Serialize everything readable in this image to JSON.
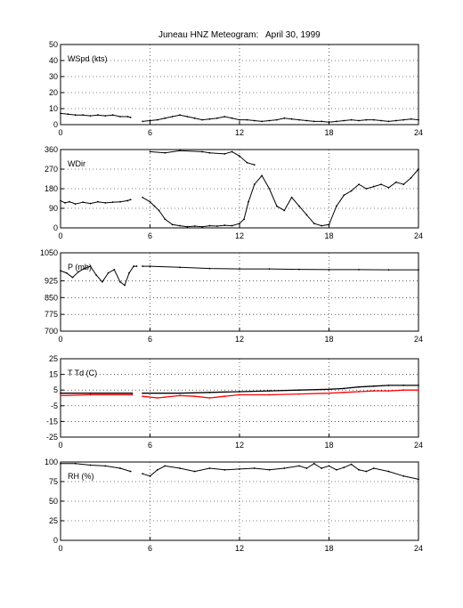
{
  "title": {
    "station": "Juneau HNZ Meteogram:",
    "date": "April 30, 1999"
  },
  "chart_data": [
    {
      "type": "scatter",
      "ylabel": "WSpd (kts)",
      "xlim": [
        0,
        24
      ],
      "ylim": [
        0,
        50
      ],
      "xticks": [
        0,
        6,
        12,
        18,
        24
      ],
      "yticks": [
        0,
        10,
        20,
        30,
        40,
        50
      ],
      "grid": true,
      "series": [
        {
          "color": "#000000",
          "segments": [
            [
              [
                0.0,
                7
              ],
              [
                0.5,
                6.5
              ],
              [
                1.0,
                6
              ],
              [
                1.5,
                6
              ],
              [
                2.0,
                5.5
              ],
              [
                2.5,
                6
              ],
              [
                3.0,
                5.5
              ],
              [
                3.5,
                6
              ],
              [
                4.0,
                5
              ],
              [
                4.5,
                5
              ],
              [
                4.7,
                4.5
              ]
            ],
            [
              [
                5.5,
                2
              ],
              [
                6.0,
                2.5
              ],
              [
                6.5,
                3
              ],
              [
                7.0,
                4
              ],
              [
                7.5,
                5
              ],
              [
                8.0,
                6
              ],
              [
                8.5,
                5
              ],
              [
                9.0,
                4
              ],
              [
                9.5,
                3
              ],
              [
                10.0,
                3.5
              ],
              [
                10.5,
                4
              ],
              [
                11.0,
                5
              ],
              [
                11.5,
                4
              ],
              [
                12.0,
                3
              ],
              [
                12.5,
                3
              ],
              [
                13.0,
                2.5
              ],
              [
                13.5,
                2
              ],
              [
                14.0,
                2.5
              ],
              [
                14.5,
                3
              ],
              [
                15.0,
                4
              ],
              [
                15.5,
                3.5
              ],
              [
                16.0,
                3
              ],
              [
                16.5,
                2.5
              ],
              [
                17.0,
                2
              ],
              [
                17.5,
                2
              ],
              [
                18.0,
                1.5
              ],
              [
                18.5,
                2
              ],
              [
                19.0,
                2.5
              ],
              [
                19.5,
                3
              ],
              [
                20.0,
                2.5
              ],
              [
                20.5,
                3
              ],
              [
                21.0,
                3
              ],
              [
                21.5,
                2.5
              ],
              [
                22.0,
                2
              ],
              [
                22.5,
                2.5
              ],
              [
                23.0,
                3
              ],
              [
                23.5,
                3.5
              ],
              [
                24.0,
                3
              ]
            ]
          ]
        }
      ]
    },
    {
      "type": "scatter",
      "ylabel": "WDir",
      "xlim": [
        0,
        24
      ],
      "ylim": [
        0,
        360
      ],
      "xticks": [
        0,
        6,
        12,
        18,
        24
      ],
      "yticks": [
        0,
        90,
        180,
        270,
        360
      ],
      "grid": true,
      "series": [
        {
          "color": "#000000",
          "segments": [
            [
              [
                0.0,
                125
              ],
              [
                0.3,
                115
              ],
              [
                0.6,
                120
              ],
              [
                1.0,
                110
              ],
              [
                1.5,
                118
              ],
              [
                2.0,
                112
              ],
              [
                2.5,
                120
              ],
              [
                3.0,
                115
              ],
              [
                3.5,
                118
              ],
              [
                4.0,
                120
              ],
              [
                4.5,
                125
              ],
              [
                4.7,
                130
              ]
            ],
            [
              [
                5.5,
                140
              ],
              [
                6.0,
                120
              ],
              [
                6.3,
                100
              ],
              [
                6.6,
                80
              ],
              [
                7.0,
                40
              ],
              [
                7.5,
                15
              ],
              [
                8.0,
                10
              ],
              [
                8.5,
                5
              ],
              [
                9.0,
                8
              ],
              [
                9.5,
                5
              ],
              [
                10.0,
                10
              ],
              [
                10.5,
                8
              ],
              [
                11.0,
                12
              ],
              [
                11.5,
                10
              ],
              [
                12.0,
                20
              ],
              [
                12.3,
                40
              ],
              [
                12.6,
                120
              ],
              [
                13.0,
                200
              ],
              [
                13.5,
                240
              ],
              [
                14.0,
                180
              ],
              [
                14.5,
                100
              ],
              [
                15.0,
                80
              ],
              [
                15.5,
                140
              ],
              [
                16.0,
                100
              ],
              [
                16.5,
                60
              ],
              [
                17.0,
                20
              ],
              [
                17.5,
                10
              ],
              [
                18.0,
                15
              ],
              [
                18.5,
                100
              ],
              [
                19.0,
                150
              ],
              [
                19.5,
                170
              ],
              [
                20.0,
                200
              ],
              [
                20.5,
                180
              ],
              [
                21.0,
                190
              ],
              [
                21.5,
                200
              ],
              [
                22.0,
                185
              ],
              [
                22.5,
                210
              ],
              [
                23.0,
                200
              ],
              [
                23.5,
                230
              ],
              [
                24.0,
                270
              ]
            ],
            [
              [
                6.0,
                350
              ],
              [
                7.0,
                345
              ],
              [
                8.0,
                355
              ],
              [
                9.5,
                350
              ],
              [
                10.0,
                345
              ],
              [
                11.0,
                340
              ],
              [
                11.5,
                350
              ],
              [
                12.0,
                330
              ],
              [
                12.5,
                300
              ],
              [
                13.0,
                290
              ]
            ]
          ]
        }
      ]
    },
    {
      "type": "scatter",
      "ylabel": "P (mb)",
      "xlim": [
        0,
        24
      ],
      "ylim": [
        700,
        1050
      ],
      "xticks": [
        0,
        6,
        12,
        18,
        24
      ],
      "yticks": [
        700,
        775,
        850,
        925,
        1050
      ],
      "grid": true,
      "series": [
        {
          "color": "#000000",
          "segments": [
            [
              [
                0.0,
                970
              ],
              [
                0.4,
                960
              ],
              [
                0.8,
                940
              ],
              [
                1.2,
                965
              ],
              [
                1.6,
                980
              ],
              [
                2.0,
                990
              ],
              [
                2.4,
                950
              ],
              [
                2.8,
                920
              ],
              [
                3.2,
                960
              ],
              [
                3.6,
                975
              ],
              [
                4.0,
                920
              ],
              [
                4.3,
                905
              ],
              [
                4.6,
                960
              ],
              [
                4.9,
                990
              ],
              [
                5.1,
                990
              ]
            ],
            [
              [
                5.5,
                990
              ],
              [
                6.0,
                990
              ],
              [
                8.0,
                985
              ],
              [
                10.0,
                980
              ],
              [
                12.0,
                978
              ],
              [
                14.0,
                978
              ],
              [
                16.0,
                976
              ],
              [
                18.0,
                975
              ],
              [
                20.0,
                975
              ],
              [
                22.0,
                974
              ],
              [
                24.0,
                974
              ]
            ]
          ]
        }
      ]
    },
    {
      "type": "line",
      "ylabel": "T Td (C)",
      "xlim": [
        0,
        24
      ],
      "ylim": [
        -25,
        25
      ],
      "xticks": [
        0,
        6,
        12,
        18,
        24
      ],
      "yticks": [
        -25,
        -15,
        -5,
        5,
        15,
        25
      ],
      "grid": true,
      "series": [
        {
          "color": "#000000",
          "segments": [
            [
              [
                0.0,
                3
              ],
              [
                2.0,
                3
              ],
              [
                4.8,
                3
              ]
            ],
            [
              [
                5.5,
                3
              ],
              [
                8.0,
                3
              ],
              [
                10.0,
                3.5
              ],
              [
                12.0,
                4
              ],
              [
                14.0,
                4.5
              ],
              [
                16.0,
                5
              ],
              [
                18.0,
                5.5
              ],
              [
                19.0,
                6
              ],
              [
                20.0,
                7
              ],
              [
                21.0,
                7.5
              ],
              [
                22.0,
                8
              ],
              [
                23.0,
                8
              ],
              [
                24.0,
                8
              ]
            ]
          ]
        },
        {
          "color": "#ff0000",
          "segments": [
            [
              [
                0.0,
                1.5
              ],
              [
                2.0,
                2
              ],
              [
                4.8,
                2
              ]
            ],
            [
              [
                5.5,
                1
              ],
              [
                6.5,
                0
              ],
              [
                7.0,
                0.5
              ],
              [
                8.0,
                1.5
              ],
              [
                9.0,
                1
              ],
              [
                10.0,
                0
              ],
              [
                11.0,
                1
              ],
              [
                12.0,
                2
              ],
              [
                14.0,
                2
              ],
              [
                16.0,
                2.5
              ],
              [
                18.0,
                3
              ],
              [
                19.0,
                3.5
              ],
              [
                20.0,
                4
              ],
              [
                21.0,
                4.5
              ],
              [
                22.0,
                4.5
              ],
              [
                23.0,
                5
              ],
              [
                24.0,
                5
              ]
            ]
          ]
        }
      ]
    },
    {
      "type": "scatter",
      "ylabel": "RH (%)",
      "xlim": [
        0,
        24
      ],
      "ylim": [
        0,
        100
      ],
      "xticks": [
        0,
        6,
        12,
        18,
        24
      ],
      "yticks": [
        0,
        25,
        50,
        75,
        100
      ],
      "grid": true,
      "series": [
        {
          "color": "#000000",
          "segments": [
            [
              [
                0.0,
                98
              ],
              [
                1.0,
                98
              ],
              [
                2.0,
                96
              ],
              [
                3.0,
                95
              ],
              [
                4.0,
                92
              ],
              [
                4.7,
                88
              ]
            ],
            [
              [
                5.5,
                85
              ],
              [
                6.0,
                82
              ],
              [
                6.5,
                90
              ],
              [
                7.0,
                95
              ],
              [
                8.0,
                92
              ],
              [
                9.0,
                88
              ],
              [
                10.0,
                92
              ],
              [
                11.0,
                90
              ],
              [
                12.0,
                91
              ],
              [
                13.0,
                92
              ],
              [
                14.0,
                90
              ],
              [
                15.0,
                92
              ],
              [
                16.0,
                95
              ],
              [
                16.5,
                92
              ],
              [
                17.0,
                98
              ],
              [
                17.5,
                92
              ],
              [
                18.0,
                95
              ],
              [
                18.5,
                90
              ],
              [
                19.0,
                93
              ],
              [
                19.5,
                97
              ],
              [
                20.0,
                90
              ],
              [
                20.5,
                88
              ],
              [
                21.0,
                92
              ],
              [
                22.0,
                88
              ],
              [
                23.0,
                82
              ],
              [
                24.0,
                78
              ]
            ]
          ]
        }
      ]
    }
  ]
}
